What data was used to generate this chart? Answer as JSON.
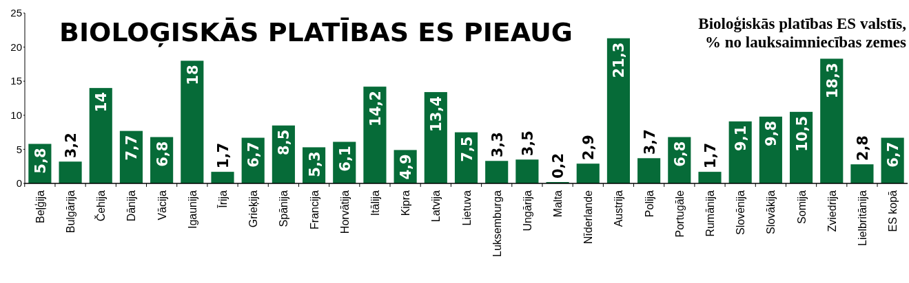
{
  "chart_data": {
    "type": "bar",
    "title": "BIOLOĢISKĀS PLATĪBAS ES PIEAUG",
    "subtitle": "Bioloģiskās platības ES valstīs,\n% no lauksaimniecības zemes",
    "categories": [
      "Beļģija",
      "Bulgārija",
      "Čehija",
      "Dānija",
      "Vācija",
      "Igaunija",
      "Īrija",
      "Grieķija",
      "Spānija",
      "Francija",
      "Horvātija",
      "Itālija",
      "Kipra",
      "Latvija",
      "Lietuva",
      "Luksemburga",
      "Ungārija",
      "Malta",
      "Nīderlande",
      "Austrija",
      "Polija",
      "Portugāle",
      "Rumānija",
      "Slovēnija",
      "Slovākija",
      "Somija",
      "Zviedrija",
      "Lielbritānija",
      "ES kopā"
    ],
    "values": [
      5.8,
      3.2,
      14,
      7.7,
      6.8,
      18,
      1.7,
      6.7,
      8.5,
      5.3,
      6.1,
      14.2,
      4.9,
      13.4,
      7.5,
      3.3,
      3.5,
      0.2,
      2.9,
      21.3,
      3.7,
      6.8,
      1.7,
      9.1,
      9.8,
      10.5,
      18.3,
      2.8,
      6.7
    ],
    "color": "#066b38",
    "ylim": [
      0,
      25
    ],
    "yticks": [
      0,
      5,
      10,
      15,
      20,
      25
    ],
    "value_labels": [
      "5,8",
      "3,2",
      "14",
      "7,7",
      "6,8",
      "18",
      "1,7",
      "6,7",
      "8,5",
      "5,3",
      "6,1",
      "14,2",
      "4,9",
      "13,4",
      "7,5",
      "3,3",
      "3,5",
      "0,2",
      "2,9",
      "21,3",
      "3,7",
      "6,8",
      "1,7",
      "9,1",
      "9,8",
      "10,5",
      "18,3",
      "2,8",
      "6,7"
    ],
    "grid": false
  }
}
